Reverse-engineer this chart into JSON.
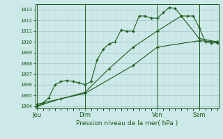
{
  "title": "Pression niveau de la mer( hPa )",
  "bg_color": "#cce8e8",
  "grid_color_major": "#aacccc",
  "grid_color_minor": "#c4dddd",
  "line_color": "#1a5c1a",
  "ylim": [
    1003.8,
    1013.5
  ],
  "yticks": [
    1004,
    1005,
    1006,
    1007,
    1008,
    1009,
    1010,
    1011,
    1012,
    1013
  ],
  "day_labels": [
    "Jeu",
    "Dim",
    "Ven",
    "Sam"
  ],
  "day_positions": [
    0,
    8,
    20,
    27
  ],
  "xlim": [
    -0.2,
    30.2
  ],
  "series1_x": [
    0,
    1,
    2,
    3,
    4,
    5,
    6,
    7,
    8,
    9,
    10,
    11,
    12,
    13,
    14,
    15,
    16,
    17,
    18,
    19,
    20,
    21,
    22,
    23,
    24,
    25,
    26,
    27,
    28,
    29,
    30
  ],
  "series1_y": [
    1004.0,
    1004.3,
    1004.8,
    1006.0,
    1006.3,
    1006.4,
    1006.3,
    1006.2,
    1006.0,
    1006.3,
    1008.3,
    1009.3,
    1009.8,
    1010.0,
    1011.1,
    1011.0,
    1011.0,
    1012.4,
    1012.4,
    1012.2,
    1012.2,
    1012.7,
    1013.2,
    1013.1,
    1012.4,
    1012.4,
    1012.4,
    1011.3,
    1010.0,
    1009.9,
    1009.9
  ],
  "series2_x": [
    0,
    4,
    8,
    12,
    16,
    20,
    24,
    27,
    30
  ],
  "series2_y": [
    1004.0,
    1004.7,
    1005.3,
    1007.5,
    1009.5,
    1011.0,
    1012.4,
    1010.3,
    1010.0
  ],
  "series3_x": [
    0,
    8,
    16,
    20,
    27,
    30
  ],
  "series3_y": [
    1004.2,
    1005.2,
    1007.8,
    1009.5,
    1010.1,
    1010.0
  ]
}
